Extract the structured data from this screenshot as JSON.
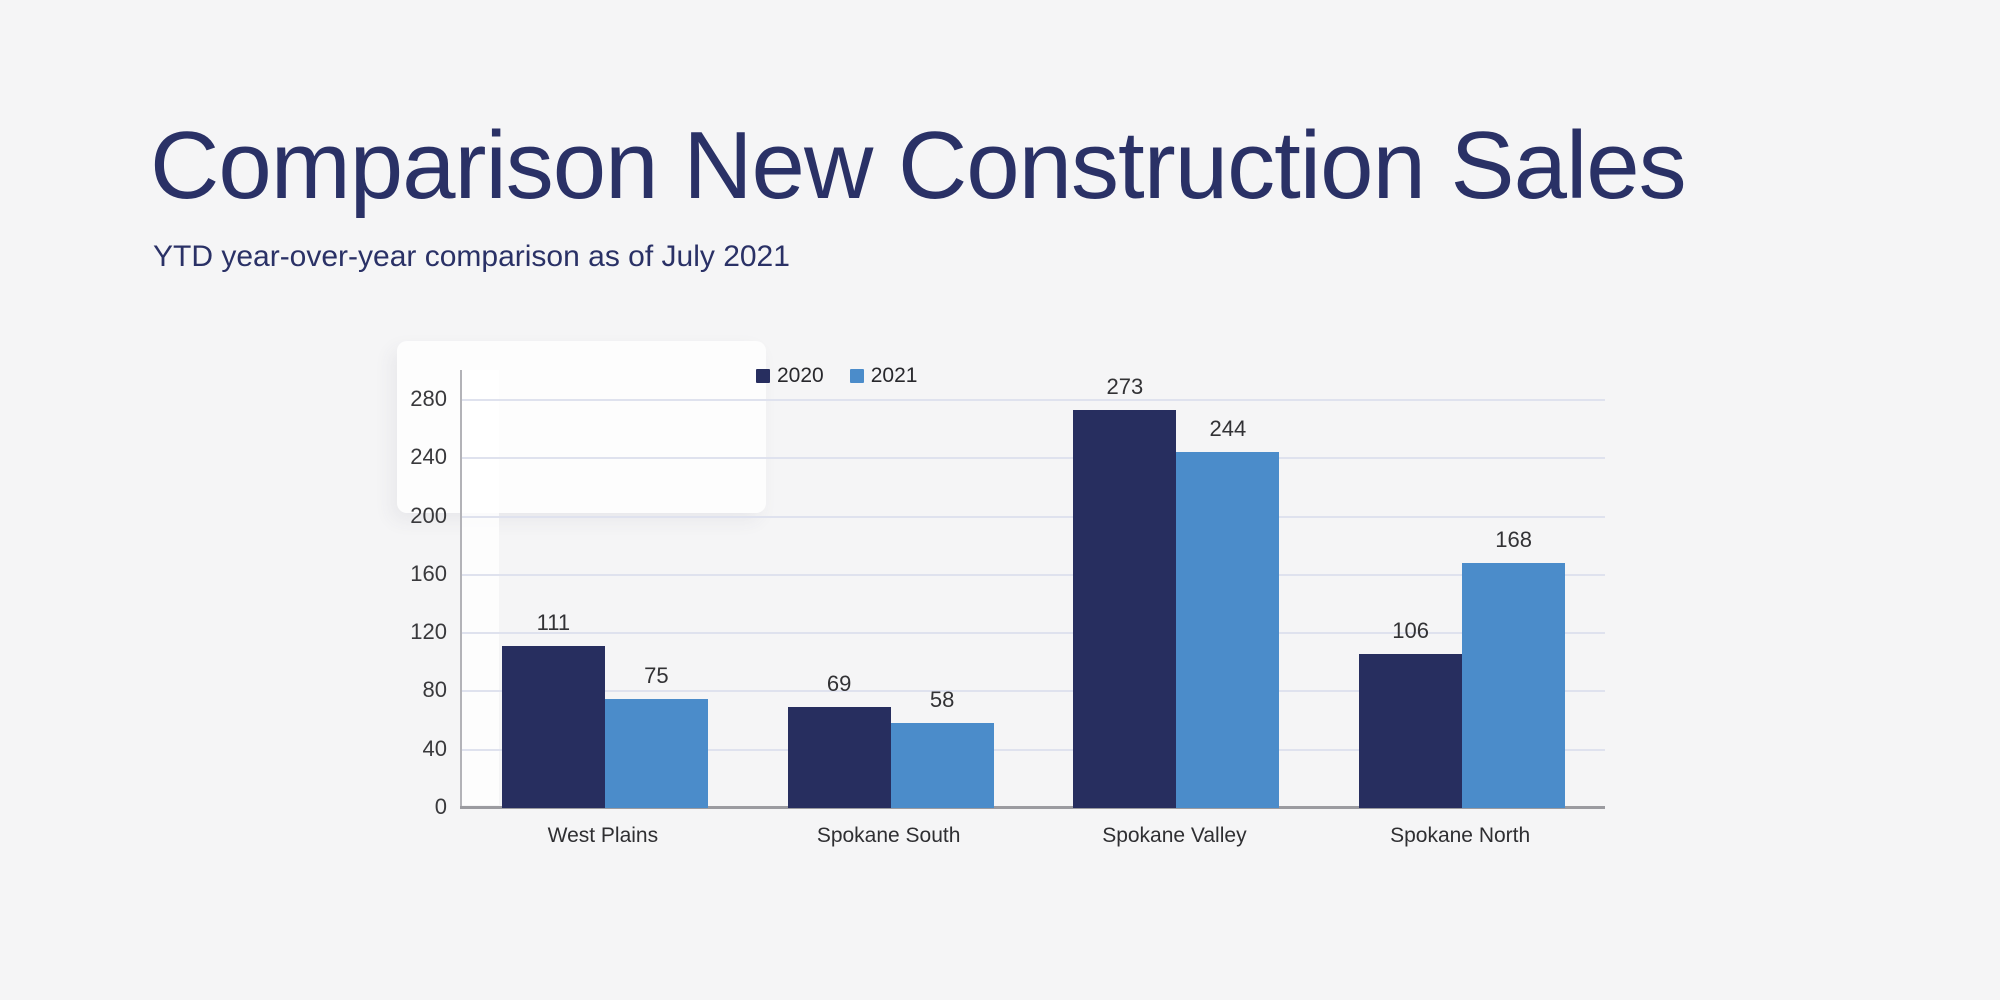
{
  "page": {
    "background": "#f5f5f6"
  },
  "chart_data": {
    "type": "bar",
    "title": "Comparison New Construction Sales",
    "subtitle": "YTD year-over-year comparison as of July 2021",
    "categories": [
      "West Plains",
      "Spokane South",
      "Spokane Valley",
      "Spokane North"
    ],
    "series": [
      {
        "name": "2020",
        "color": "#272e5f",
        "values": [
          111,
          69,
          273,
          106
        ]
      },
      {
        "name": "2021",
        "color": "#4b8cca",
        "values": [
          75,
          58,
          244,
          168
        ]
      }
    ],
    "ylim": [
      0,
      280
    ],
    "yticks": [
      0,
      40,
      80,
      120,
      160,
      200,
      240,
      280
    ],
    "grid": true,
    "legend_position": "top",
    "value_labels": true,
    "colors": {
      "title_text": "#2a3166",
      "axis_line": "#b3b3b8",
      "baseline": "#9b9ba0",
      "gridline": "#dfe2ee",
      "label_text": "#323235"
    }
  }
}
